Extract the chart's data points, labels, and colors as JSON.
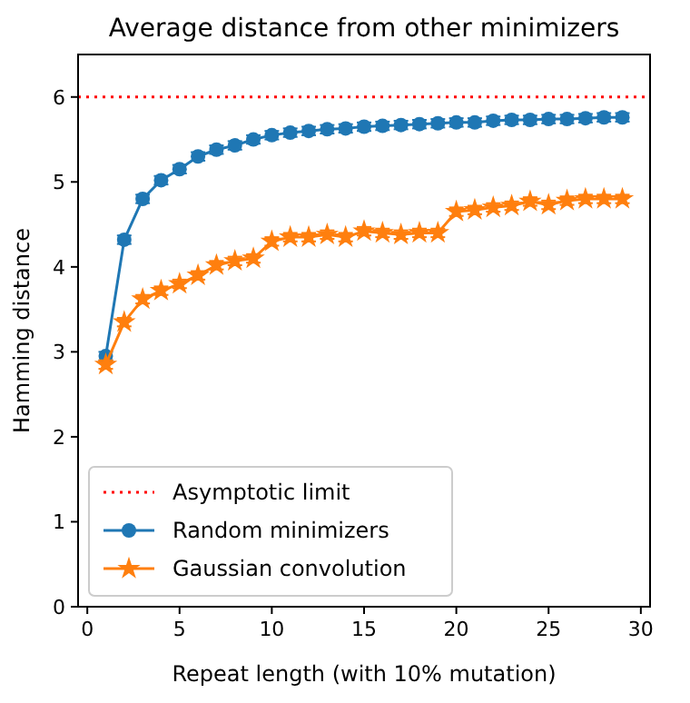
{
  "chart_data": {
    "type": "line",
    "title": "Average distance from other minimizers",
    "xlabel": "Repeat length (with 10% mutation)",
    "ylabel": "Hamming distance",
    "x": [
      1,
      2,
      3,
      4,
      5,
      6,
      7,
      8,
      9,
      10,
      11,
      12,
      13,
      14,
      15,
      16,
      17,
      18,
      19,
      20,
      21,
      22,
      23,
      24,
      25,
      26,
      27,
      28,
      29
    ],
    "xlim": [
      -0.5,
      30.5
    ],
    "xticks": [
      0,
      5,
      10,
      15,
      20,
      25,
      30
    ],
    "ylim": [
      0,
      6.5
    ],
    "yticks": [
      0,
      1,
      2,
      3,
      4,
      5,
      6
    ],
    "grid": false,
    "legend": "bottom left",
    "series": [
      {
        "name": "Random minimizers",
        "color": "#1f77b4",
        "marker": "circle",
        "values": [
          2.95,
          4.32,
          4.8,
          5.02,
          5.15,
          5.3,
          5.38,
          5.43,
          5.5,
          5.55,
          5.58,
          5.6,
          5.62,
          5.63,
          5.65,
          5.66,
          5.67,
          5.68,
          5.69,
          5.7,
          5.7,
          5.72,
          5.73,
          5.73,
          5.74,
          5.74,
          5.75,
          5.76,
          5.76
        ],
        "errors": [
          0.05,
          0.05,
          0.05,
          0.05,
          0.05,
          0.05,
          0.05,
          0.05,
          0.05,
          0.05,
          0.05,
          0.05,
          0.05,
          0.05,
          0.05,
          0.05,
          0.05,
          0.05,
          0.05,
          0.05,
          0.05,
          0.05,
          0.05,
          0.05,
          0.05,
          0.05,
          0.05,
          0.05,
          0.05
        ]
      },
      {
        "name": "Gaussian convolution",
        "color": "#ff7f0e",
        "marker": "star",
        "values": [
          2.85,
          3.35,
          3.62,
          3.72,
          3.8,
          3.9,
          4.02,
          4.07,
          4.1,
          4.3,
          4.35,
          4.35,
          4.38,
          4.35,
          4.42,
          4.4,
          4.38,
          4.4,
          4.4,
          4.65,
          4.67,
          4.7,
          4.72,
          4.77,
          4.73,
          4.78,
          4.8,
          4.8,
          4.8
        ],
        "errors": [
          0.05,
          0.05,
          0.05,
          0.05,
          0.05,
          0.05,
          0.05,
          0.05,
          0.05,
          0.05,
          0.05,
          0.05,
          0.05,
          0.05,
          0.05,
          0.05,
          0.05,
          0.05,
          0.05,
          0.05,
          0.05,
          0.05,
          0.05,
          0.05,
          0.05,
          0.05,
          0.05,
          0.05,
          0.05
        ]
      }
    ],
    "ref_lines": [
      {
        "axis": "y",
        "value": 6,
        "label": "Asymptotic limit",
        "color": "#ff0000",
        "line_style": "dotted"
      }
    ]
  }
}
